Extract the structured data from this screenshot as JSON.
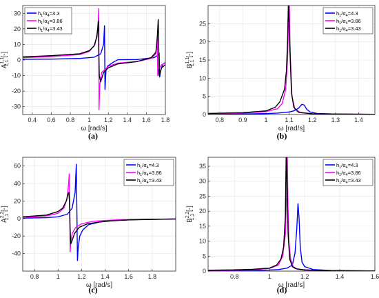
{
  "colors": {
    "h43": "#0000ff",
    "h386": "#ff00ff",
    "h343": "#000000",
    "grid": "#e3e3e3",
    "axis": "#262626"
  },
  "panels": [
    {
      "label": "(a)",
      "chart_data": {
        "type": "line",
        "xlabel": "ω [rad/s]",
        "ylabel": {
          "base": "A",
          "sub": "1,1",
          "sup": "1,1",
          "unit": "[-]"
        },
        "xlim": [
          0.3,
          1.8
        ],
        "ylim": [
          -35,
          35
        ],
        "xticks": [
          0.4,
          0.6,
          0.8,
          1,
          1.2,
          1.4,
          1.6,
          1.8
        ],
        "yticks": [
          -30,
          -20,
          -10,
          0,
          10,
          20,
          30
        ],
        "xtick_labels": [
          "0.4",
          "0.6",
          "0.8",
          "1",
          "1.2",
          "1.4",
          "1.6",
          "1.8"
        ],
        "ytick_labels": [
          "-30",
          "-20",
          "-10",
          "0",
          "10",
          "20",
          "30"
        ],
        "grid": true,
        "legend_position": "top-left",
        "series": [
          {
            "name": "h1/a4=4.3",
            "legend": {
              "h": "h",
              "hs": "1",
              "slash": "/α",
              "as": "4",
              "val": "=4.3"
            },
            "color": "#0000ff",
            "x": [
              0.3,
              0.6,
              0.9,
              1.05,
              1.12,
              1.15,
              1.16,
              1.165,
              1.175,
              1.19,
              1.25,
              1.3,
              1.5,
              1.68,
              1.72,
              1.735,
              1.74,
              1.75,
              1.77,
              1.8
            ],
            "y": [
              0.5,
              0.6,
              1.0,
              1.8,
              4.0,
              10.0,
              22.0,
              -19.0,
              -7.0,
              -4.0,
              -1.5,
              0.2,
              0.3,
              1.5,
              3.0,
              4.5,
              -11.0,
              -7.0,
              -3.0,
              -1.5
            ]
          },
          {
            "name": "h1/a4=3.86",
            "legend": {
              "h": "h",
              "hs": "1",
              "slash": "/α",
              "as": "4",
              "val": "=3.86"
            },
            "color": "#ff00ff",
            "x": [
              0.3,
              0.6,
              0.9,
              1.0,
              1.06,
              1.09,
              1.1,
              1.102,
              1.11,
              1.13,
              1.2,
              1.3,
              1.5,
              1.65,
              1.7,
              1.715,
              1.72,
              1.73,
              1.76,
              1.8
            ],
            "y": [
              1.5,
              2.2,
              3.5,
              5.5,
              10.0,
              20.0,
              33.0,
              -32.0,
              -16.0,
              -8.0,
              -4.0,
              -2.0,
              -1.0,
              1.0,
              4.0,
              14.0,
              -10.0,
              -6.0,
              -3.0,
              -2.0
            ]
          },
          {
            "name": "h1/a4=3.43",
            "legend": {
              "h": "h",
              "hs": "1",
              "slash": "/α",
              "as": "4",
              "val": "=3.43"
            },
            "color": "#000000",
            "x": [
              0.3,
              0.6,
              0.9,
              1.0,
              1.05,
              1.08,
              1.095,
              1.1,
              1.105,
              1.12,
              1.15,
              1.2,
              1.3,
              1.5,
              1.65,
              1.7,
              1.715,
              1.725,
              1.735,
              1.76,
              1.8
            ],
            "y": [
              2.0,
              2.8,
              4.0,
              6.0,
              9.0,
              15.0,
              25.0,
              5.0,
              -10.0,
              -14.0,
              -8.0,
              -5.0,
              -2.5,
              -1.0,
              1.5,
              5.0,
              15.0,
              26.0,
              -10.0,
              -5.0,
              -3.0
            ]
          }
        ]
      }
    },
    {
      "label": "(b)",
      "chart_data": {
        "type": "line",
        "xlabel": "ω [rad/s]",
        "ylabel": {
          "base": "B",
          "sub": "1,1",
          "sup": "1,1",
          "unit": "[-]"
        },
        "xlim": [
          0.75,
          1.47
        ],
        "ylim": [
          0,
          30
        ],
        "xticks": [
          0.8,
          0.9,
          1,
          1.1,
          1.2,
          1.3,
          1.4
        ],
        "yticks": [
          0,
          5,
          10,
          15,
          20,
          25
        ],
        "xtick_labels": [
          "0.8",
          "0.9",
          "1",
          "1.1",
          "1.2",
          "1.3",
          "1.4"
        ],
        "ytick_labels": [
          "0",
          "5",
          "10",
          "15",
          "20",
          "25"
        ],
        "grid": true,
        "legend_position": "top-right",
        "series": [
          {
            "name": "h1/a4=4.3",
            "legend": {
              "h": "h",
              "hs": "1",
              "slash": "/α",
              "as": "4",
              "val": "=4.3"
            },
            "color": "#0000ff",
            "x": [
              0.75,
              0.9,
              1.0,
              1.05,
              1.1,
              1.12,
              1.14,
              1.155,
              1.165,
              1.175,
              1.19,
              1.22,
              1.3,
              1.47
            ],
            "y": [
              0.1,
              0.15,
              0.25,
              0.4,
              0.7,
              1.0,
              1.7,
              2.8,
              2.6,
              1.5,
              0.7,
              0.3,
              0.1,
              0.05
            ]
          },
          {
            "name": "h1/a4=3.86",
            "legend": {
              "h": "h",
              "hs": "1",
              "slash": "/α",
              "as": "4",
              "val": "=3.86"
            },
            "color": "#ff00ff",
            "x": [
              0.75,
              0.9,
              1.0,
              1.05,
              1.07,
              1.085,
              1.093,
              1.097,
              1.1,
              1.105,
              1.112,
              1.125,
              1.15,
              1.2,
              1.47
            ],
            "y": [
              0.2,
              0.4,
              0.8,
              1.6,
              3.0,
              7.0,
              15.0,
              26.0,
              32.0,
              16.0,
              5.0,
              1.5,
              0.5,
              0.2,
              0.05
            ]
          },
          {
            "name": "h1/a4=3.43",
            "legend": {
              "h": "h",
              "hs": "1",
              "slash": "/α",
              "as": "4",
              "val": "=3.43"
            },
            "color": "#000000",
            "x": [
              0.75,
              0.9,
              1.0,
              1.04,
              1.06,
              1.08,
              1.088,
              1.093,
              1.097,
              1.102,
              1.11,
              1.12,
              1.14,
              1.2,
              1.47
            ],
            "y": [
              0.3,
              0.5,
              1.0,
              2.0,
              3.5,
              7.0,
              12.0,
              20.0,
              32.0,
              20.0,
              6.0,
              2.0,
              0.6,
              0.2,
              0.05
            ]
          }
        ]
      }
    },
    {
      "label": "(c)",
      "chart_data": {
        "type": "line",
        "xlabel": "ω [rad/s]",
        "ylabel": {
          "base": "A",
          "sub": "1,1",
          "sup": "2,2",
          "unit": "[-]"
        },
        "xlim": [
          0.7,
          2.0
        ],
        "ylim": [
          -60,
          70
        ],
        "xticks": [
          0.8,
          1,
          1.2,
          1.4,
          1.6,
          1.8
        ],
        "yticks": [
          -40,
          -20,
          0,
          20,
          40,
          60
        ],
        "xtick_labels": [
          "0.8",
          "1",
          "1.2",
          "1.4",
          "1.6",
          "1.8"
        ],
        "ytick_labels": [
          "-40",
          "-20",
          "0",
          "20",
          "40",
          "60"
        ],
        "grid": true,
        "legend_position": "top-right",
        "series": [
          {
            "name": "h1/a4=4.3",
            "legend": {
              "h": "h",
              "hs": "1",
              "slash": "/α",
              "as": "4",
              "val": "=4.3"
            },
            "color": "#0000ff",
            "x": [
              0.7,
              0.9,
              1.0,
              1.08,
              1.12,
              1.145,
              1.155,
              1.16,
              1.165,
              1.172,
              1.185,
              1.21,
              1.26,
              1.35,
              1.5,
              1.7,
              2.0
            ],
            "y": [
              0.5,
              1.0,
              2.0,
              5.0,
              12.0,
              30.0,
              62.0,
              10.0,
              -48.0,
              -32.0,
              -20.0,
              -13.0,
              -7.0,
              -4.0,
              -2.0,
              -1.0,
              -0.5
            ]
          },
          {
            "name": "h1/a4=3.86",
            "legend": {
              "h": "h",
              "hs": "1",
              "slash": "/α",
              "as": "4",
              "val": "=3.86"
            },
            "color": "#ff00ff",
            "x": [
              0.7,
              0.9,
              1.0,
              1.05,
              1.075,
              1.09,
              1.095,
              1.1,
              1.103,
              1.108,
              1.12,
              1.15,
              1.2,
              1.3,
              1.5,
              2.0
            ],
            "y": [
              1.0,
              3.0,
              6.0,
              12.0,
              22.0,
              40.0,
              51.0,
              10.0,
              -38.0,
              -27.0,
              -17.0,
              -10.0,
              -6.0,
              -3.0,
              -1.5,
              -0.5
            ]
          },
          {
            "name": "h1/a4=3.43",
            "legend": {
              "h": "h",
              "hs": "1",
              "slash": "/α",
              "as": "4",
              "val": "=3.43"
            },
            "color": "#000000",
            "x": [
              0.7,
              0.9,
              1.0,
              1.04,
              1.07,
              1.085,
              1.092,
              1.097,
              1.102,
              1.108,
              1.12,
              1.14,
              1.18,
              1.25,
              1.4,
              1.6,
              2.0
            ],
            "y": [
              2.0,
              4.0,
              8.0,
              12.0,
              20.0,
              28.0,
              30.0,
              20.0,
              -10.0,
              -29.0,
              -25.0,
              -17.0,
              -10.0,
              -6.0,
              -3.0,
              -1.5,
              -0.5
            ]
          }
        ]
      }
    },
    {
      "label": "(d)",
      "chart_data": {
        "type": "line",
        "xlabel": "ω [rad/s]",
        "ylabel": {
          "base": "B",
          "sub": "1,1",
          "sup": "2,2",
          "unit": "[-]"
        },
        "xlim": [
          0.65,
          1.6
        ],
        "ylim": [
          0,
          38
        ],
        "xticks": [
          0.8,
          1,
          1.2,
          1.4,
          1.6
        ],
        "yticks": [
          0,
          5,
          10,
          15,
          20,
          25,
          30,
          35
        ],
        "xtick_labels": [
          "0.8",
          "1",
          "1.2",
          "1.4",
          "1.6"
        ],
        "ytick_labels": [
          "0",
          "5",
          "10",
          "15",
          "20",
          "25",
          "30",
          "35"
        ],
        "grid": true,
        "legend_position": "top-right",
        "series": [
          {
            "name": "h1/a4=4.3",
            "legend": {
              "h": "h",
              "hs": "1",
              "slash": "/α",
              "as": "4",
              "val": "=4.3"
            },
            "color": "#0000ff",
            "x": [
              0.65,
              0.9,
              1.0,
              1.05,
              1.1,
              1.13,
              1.145,
              1.155,
              1.162,
              1.168,
              1.175,
              1.185,
              1.2,
              1.25,
              1.35,
              1.6
            ],
            "y": [
              0.1,
              0.2,
              0.35,
              0.5,
              1.0,
              2.0,
              6.0,
              14.0,
              22.5,
              18.0,
              8.0,
              3.0,
              1.5,
              0.5,
              0.2,
              0.05
            ]
          },
          {
            "name": "h1/a4=3.86",
            "legend": {
              "h": "h",
              "hs": "1",
              "slash": "/α",
              "as": "4",
              "val": "=3.86"
            },
            "color": "#ff00ff",
            "x": [
              0.65,
              0.9,
              1.0,
              1.05,
              1.075,
              1.09,
              1.097,
              1.101,
              1.105,
              1.11,
              1.12,
              1.135,
              1.16,
              1.2,
              1.3,
              1.6
            ],
            "y": [
              0.2,
              0.4,
              0.9,
              2.0,
              5.0,
              12.0,
              25.0,
              40.0,
              22.0,
              10.0,
              4.0,
              1.5,
              0.6,
              0.3,
              0.1,
              0.05
            ]
          },
          {
            "name": "h1/a4=3.43",
            "legend": {
              "h": "h",
              "hs": "1",
              "slash": "/α",
              "as": "4",
              "val": "=3.43"
            },
            "color": "#000000",
            "x": [
              0.65,
              0.8,
              0.9,
              1.0,
              1.04,
              1.065,
              1.08,
              1.09,
              1.095,
              1.1,
              1.106,
              1.115,
              1.13,
              1.15,
              1.2,
              1.3,
              1.6
            ],
            "y": [
              0.3,
              0.4,
              0.6,
              1.0,
              2.0,
              4.0,
              8.0,
              18.0,
              40.0,
              28.0,
              12.0,
              4.0,
              1.5,
              0.8,
              0.4,
              0.2,
              0.05
            ]
          }
        ]
      }
    }
  ]
}
